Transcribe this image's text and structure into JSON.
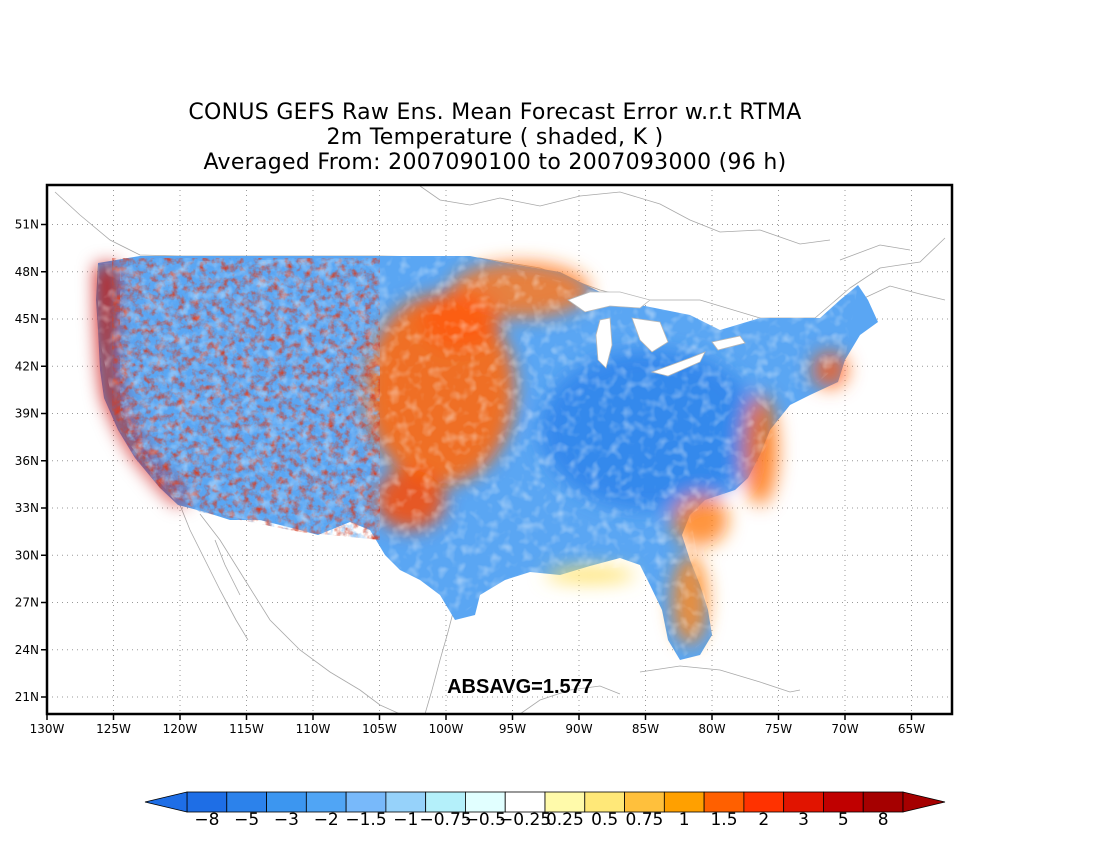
{
  "title_lines": [
    "CONUS GEFS Raw Ens. Mean Forecast Error w.r.t RTMA",
    "2m Temperature ( shaded, K )",
    "Averaged From: 2007090100 to 2007093000 (96 h)"
  ],
  "map": {
    "lon_range": [
      -130,
      -60
    ],
    "lat_range": [
      20,
      53
    ],
    "lon_ticks": [
      {
        "lon": -130,
        "label": "130W"
      },
      {
        "lon": -125,
        "label": "125W"
      },
      {
        "lon": -120,
        "label": "120W"
      },
      {
        "lon": -115,
        "label": "115W"
      },
      {
        "lon": -110,
        "label": "110W"
      },
      {
        "lon": -105,
        "label": "105W"
      },
      {
        "lon": -100,
        "label": "100W"
      },
      {
        "lon": -95,
        "label": "95W"
      },
      {
        "lon": -90,
        "label": "90W"
      },
      {
        "lon": -85,
        "label": "85W"
      },
      {
        "lon": -80,
        "label": "80W"
      },
      {
        "lon": -75,
        "label": "75W"
      },
      {
        "lon": -70,
        "label": "70W"
      },
      {
        "lon": -65,
        "label": "65W"
      }
    ],
    "lat_ticks": [
      {
        "lat": 21,
        "label": "21N"
      },
      {
        "lat": 24,
        "label": "24N"
      },
      {
        "lat": 27,
        "label": "27N"
      },
      {
        "lat": 30,
        "label": "30N"
      },
      {
        "lat": 33,
        "label": "33N"
      },
      {
        "lat": 36,
        "label": "36N"
      },
      {
        "lat": 39,
        "label": "39N"
      },
      {
        "lat": 42,
        "label": "42N"
      },
      {
        "lat": 45,
        "label": "45N"
      },
      {
        "lat": 48,
        "label": "48N"
      },
      {
        "lat": 51,
        "label": "51N"
      }
    ],
    "grid": true,
    "annotation": "ABSAVG=1.577"
  },
  "colorbar": {
    "labels": [
      "-8",
      "-5",
      "-3",
      "-2",
      "-1.5",
      "-1",
      "-0.75",
      "-0.5",
      "-0.25",
      "0.25",
      "0.5",
      "0.75",
      "1",
      "1.5",
      "2",
      "3",
      "5",
      "8"
    ],
    "colors": [
      "#1e6ee6",
      "#2c82eb",
      "#3c96f0",
      "#50a5f5",
      "#78b9fa",
      "#96d2fa",
      "#b4f0fa",
      "#e1ffff",
      "#ffffff",
      "#fffaaa",
      "#ffe878",
      "#ffc03c",
      "#ffa000",
      "#ff6000",
      "#ff3200",
      "#e11400",
      "#c00000",
      "#a50000"
    ]
  }
}
